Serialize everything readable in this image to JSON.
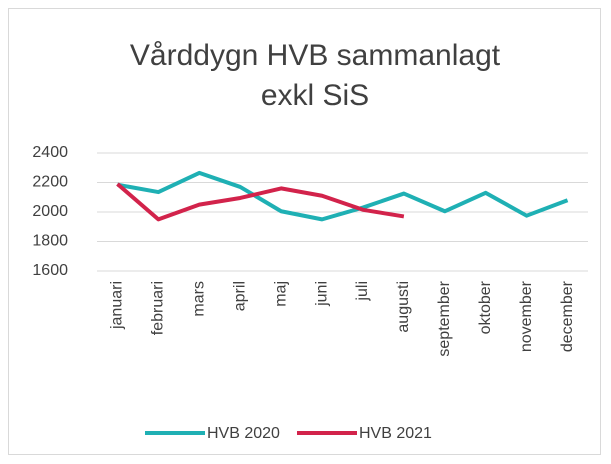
{
  "chart_data": {
    "type": "line",
    "title": "Vårddygn HVB sammanlagt exkl SiS",
    "categories": [
      "januari",
      "februari",
      "mars",
      "april",
      "maj",
      "juni",
      "juli",
      "augusti",
      "september",
      "oktober",
      "november",
      "december"
    ],
    "series": [
      {
        "name": "HVB 2020",
        "color": "#1fb0b4",
        "values": [
          2185,
          2135,
          2265,
          2170,
          2005,
          1950,
          2030,
          2125,
          2005,
          2130,
          1975,
          2080
        ]
      },
      {
        "name": "HVB 2021",
        "color": "#d2234b",
        "values": [
          2190,
          1950,
          2050,
          2095,
          2160,
          2110,
          2015,
          1970,
          null,
          null,
          null,
          null
        ]
      }
    ],
    "ylim": [
      1600,
      2400
    ],
    "yticks": [
      1600,
      1800,
      2000,
      2200,
      2400
    ],
    "grid": true,
    "legend": "bottom"
  }
}
